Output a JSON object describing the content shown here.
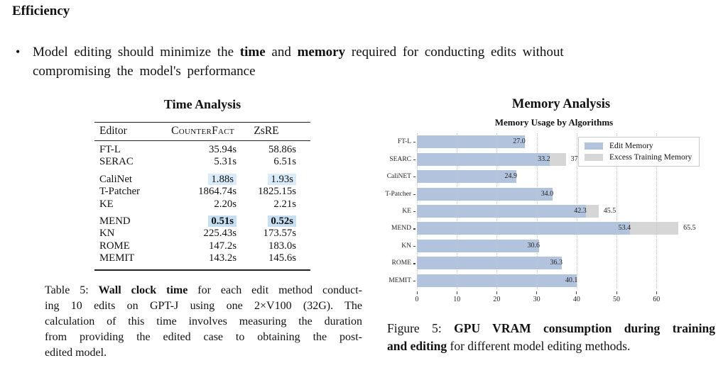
{
  "section": {
    "heading": "Efficiency"
  },
  "bullet": {
    "marker": "•",
    "lines": [
      [
        {
          "t": "Model editing should minimize the "
        },
        {
          "t": "time",
          "b": true
        },
        {
          "t": " and "
        },
        {
          "t": "memory",
          "b": true
        },
        {
          "t": " required for conducting edits without"
        }
      ],
      [
        {
          "t": "compromising the model's performance"
        }
      ]
    ]
  },
  "time_table": {
    "title": "Time Analysis",
    "columns": [
      "Editor",
      "CounterFact",
      "ZsRE"
    ],
    "highlight_colors": {
      "light": "#d9ebf8",
      "strong": "#c6dff2"
    },
    "rows": [
      {
        "editor": "FT-L",
        "counterfact": "35.94s",
        "zsre": "58.86s"
      },
      {
        "editor": "SERAC",
        "counterfact": "5.31s",
        "zsre": "6.51s"
      },
      {
        "editor": "CaliNet",
        "counterfact": "1.88s",
        "zsre": "1.93s",
        "highlight": "light",
        "group_start": true
      },
      {
        "editor": "T-Patcher",
        "counterfact": "1864.74s",
        "zsre": "1825.15s"
      },
      {
        "editor": "KE",
        "counterfact": "2.20s",
        "zsre": "2.21s"
      },
      {
        "editor": "MEND",
        "counterfact": "0.51s",
        "zsre": "0.52s",
        "highlight": "strong",
        "bold": true,
        "group_start": true
      },
      {
        "editor": "KN",
        "counterfact": "225.43s",
        "zsre": "173.57s"
      },
      {
        "editor": "ROME",
        "counterfact": "147.2s",
        "zsre": "183.0s"
      },
      {
        "editor": "MEMIT",
        "counterfact": "143.2s",
        "zsre": "145.6s"
      }
    ]
  },
  "table_caption": {
    "lines": [
      [
        {
          "t": "Table 5: "
        },
        {
          "t": "Wall clock time",
          "b": true
        },
        {
          "t": " for each edit method conduct-"
        }
      ],
      [
        {
          "t": "ing 10 edits on GPT-J using one 2×V100 (32G). The"
        }
      ],
      [
        {
          "t": "calculation of this time involves measuring the duration"
        }
      ],
      [
        {
          "t": "from providing the edited case to obtaining the post-"
        }
      ],
      [
        {
          "t": "edited model."
        }
      ]
    ]
  },
  "figure": {
    "title": "Memory Analysis",
    "caption_lines": [
      [
        {
          "t": "Figure 5: "
        },
        {
          "t": "GPU VRAM consumption during training",
          "b": true
        }
      ],
      [
        {
          "t": "and editing",
          "b": true
        },
        {
          "t": " for different model editing methods."
        }
      ]
    ]
  },
  "chart_data": {
    "type": "bar",
    "orientation": "horizontal",
    "title": "Memory Usage by Algorithms",
    "categories": [
      "FT-L",
      "SEARC",
      "CaliNET",
      "T-Patcher",
      "KE",
      "MEND",
      "KN",
      "ROME",
      "MEMIT"
    ],
    "series": [
      {
        "name": "Edit Memory",
        "color": "#b2c4dd",
        "values": [
          27.0,
          33.2,
          24.9,
          34.0,
          42.3,
          53.4,
          30.6,
          36.3,
          40.1
        ]
      },
      {
        "name": "Excess Training Memory",
        "color": "#d6d6d6",
        "values": [
          null,
          37.3,
          null,
          null,
          45.5,
          65.5,
          null,
          null,
          null
        ]
      }
    ],
    "xticks": [
      0,
      10,
      20,
      30,
      40,
      50,
      60
    ],
    "xlim": [
      0,
      71.7
    ],
    "legend_position": "top-right",
    "grid": "vertical-dotted",
    "value_label_decimals": 1
  }
}
